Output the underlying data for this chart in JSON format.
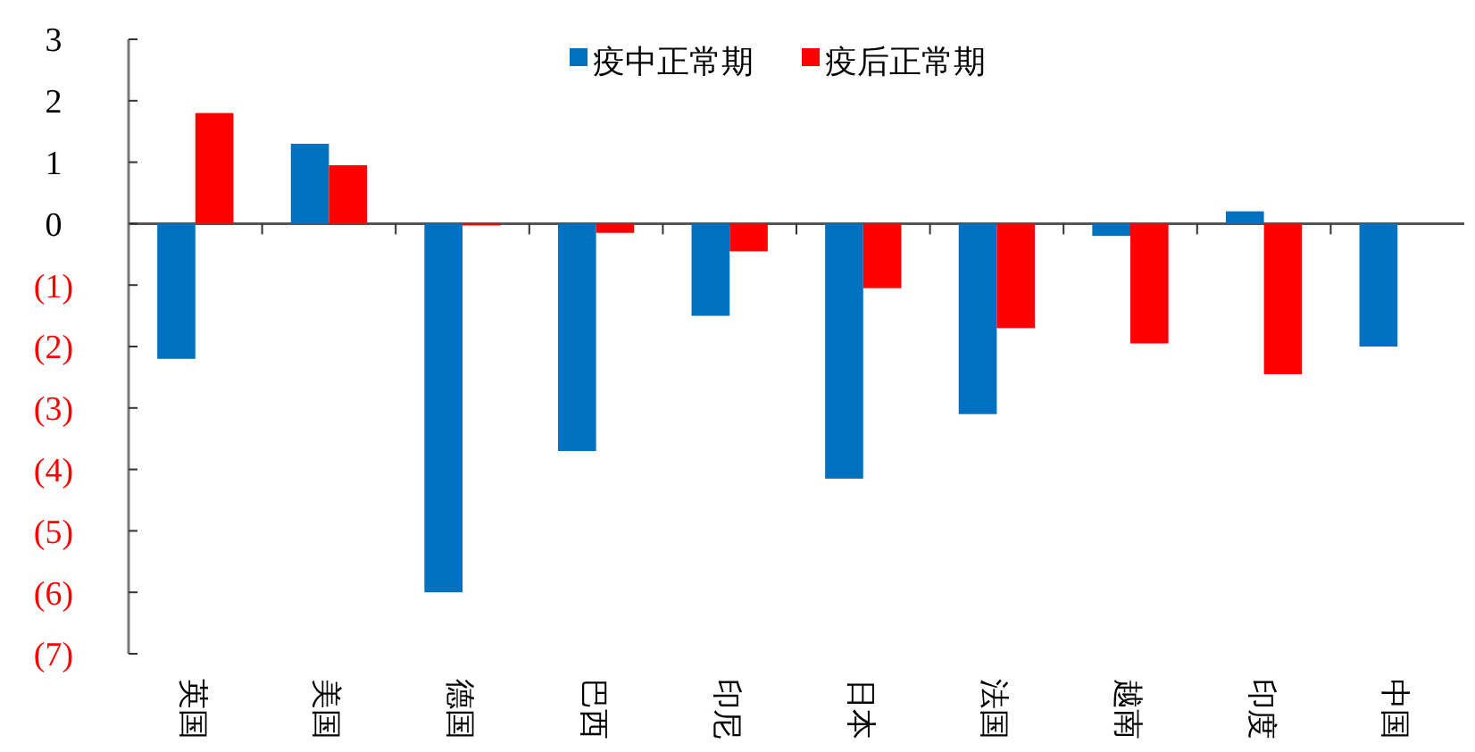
{
  "chart_data": {
    "type": "bar",
    "categories": [
      "英国",
      "美国",
      "德国",
      "巴西",
      "印尼",
      "日本",
      "法国",
      "越南",
      "印度",
      "中国"
    ],
    "series": [
      {
        "name": "疫中正常期",
        "color": "#0070c0",
        "values": [
          -2.2,
          1.3,
          -6.0,
          -3.7,
          -1.5,
          -4.15,
          -3.1,
          -0.2,
          0.2,
          -2.0
        ]
      },
      {
        "name": "疫后正常期",
        "color": "#ff0000",
        "values": [
          1.8,
          0.95,
          -0.03,
          -0.15,
          -0.45,
          -1.05,
          -1.7,
          -1.95,
          -2.45,
          null
        ]
      }
    ],
    "ylim": [
      -7,
      3
    ],
    "yticks": [
      3,
      2,
      1,
      0,
      {
        "value": -1,
        "label": "(1)"
      },
      {
        "value": -2,
        "label": "(2)"
      },
      {
        "value": -3,
        "label": "(3)"
      },
      {
        "value": -4,
        "label": "(4)"
      },
      {
        "value": -5,
        "label": "(5)"
      },
      {
        "value": -6,
        "label": "(6)"
      },
      {
        "value": -7,
        "label": "(7)"
      }
    ],
    "legend": "top"
  }
}
